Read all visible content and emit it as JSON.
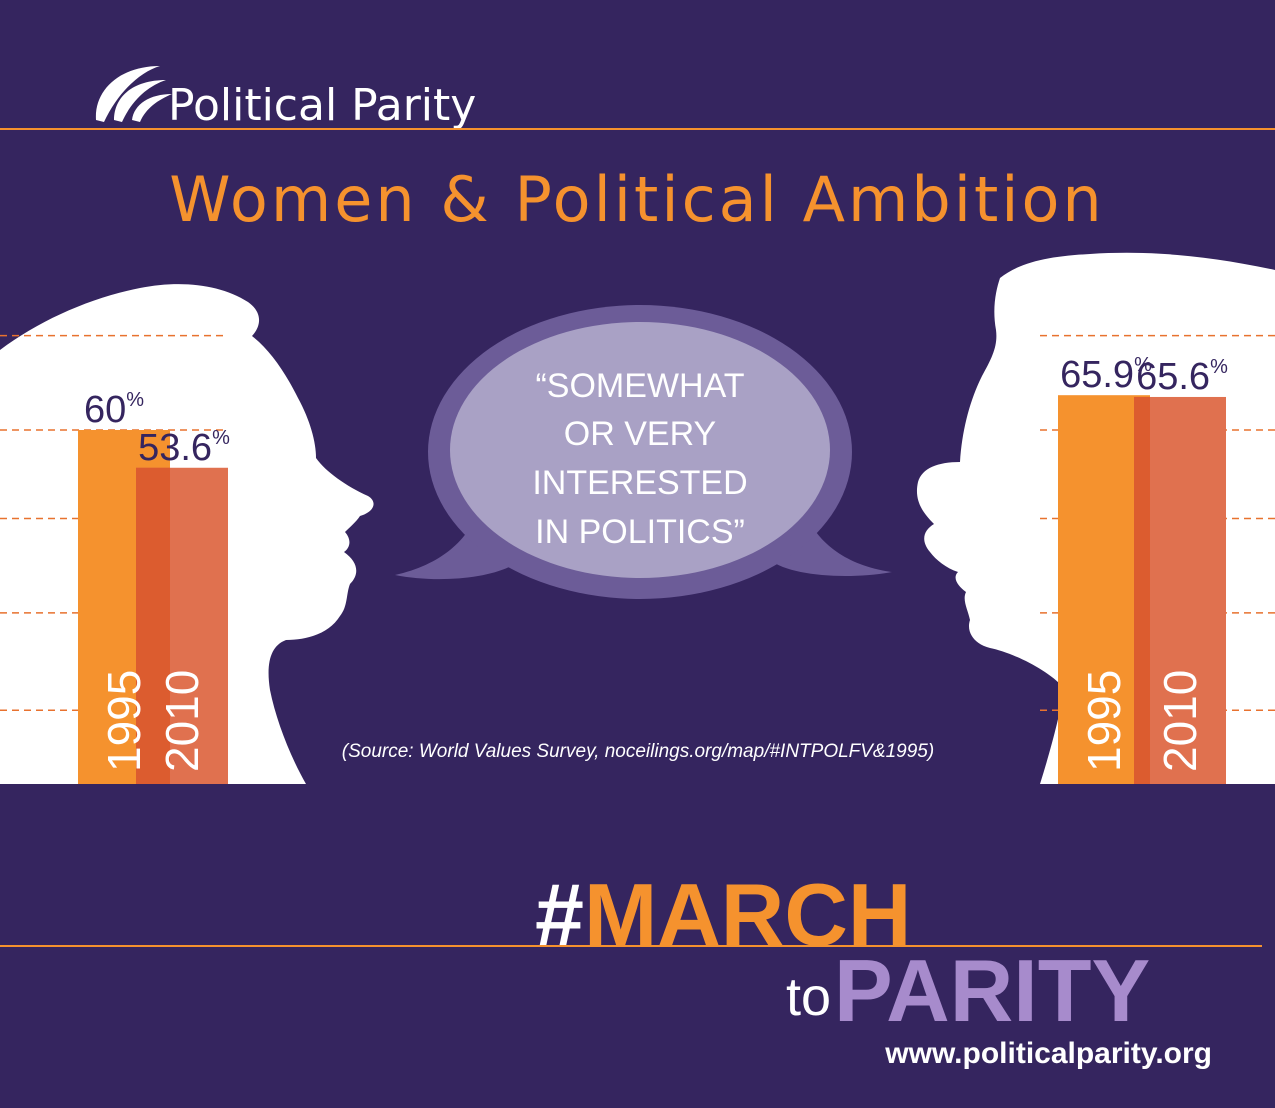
{
  "brand": {
    "name": "Political Parity"
  },
  "title": "Women & Political Ambition",
  "bubble": {
    "lines": [
      "“SOMEWHAT",
      "OR VERY",
      "INTERESTED",
      "IN POLITICS”"
    ]
  },
  "source": "(Source: World Values Survey, noceilings.org/map/#INTPOLFV&1995)",
  "campaign": {
    "hash": "#",
    "march": "MARCH",
    "to": "to",
    "parity": "PARITY"
  },
  "website": "www.politicalparity.org",
  "colors": {
    "background": "#35255f",
    "accent_orange": "#f5922e",
    "bar_1995": "#f5922e",
    "bar_2010": "#e0714f",
    "bar_overlap": "#dc5c2f",
    "silhouette": "#ffffff",
    "bubble": "#a9a1c5",
    "parity_purple": "#a78bcc"
  },
  "chart_data": [
    {
      "type": "bar",
      "categories": [
        "1995",
        "2010"
      ],
      "values": [
        60,
        53.6
      ],
      "value_labels": [
        "60",
        "53.6"
      ],
      "unit": "%"
    },
    {
      "type": "bar",
      "categories": [
        "1995",
        "2010"
      ],
      "values": [
        65.9,
        65.6
      ],
      "value_labels": [
        "65.9",
        "65.6"
      ],
      "unit": "%"
    }
  ]
}
